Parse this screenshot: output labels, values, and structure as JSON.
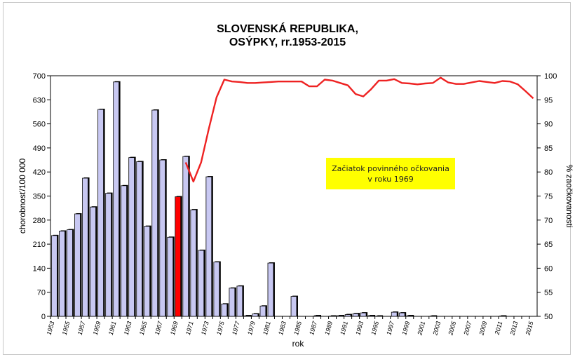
{
  "chart_data": {
    "type": "bar",
    "title_line1": "SLOVENSKÁ REPUBLIKA,",
    "title_line2": "OSÝPKY, rr.1953-2015",
    "xlabel": "rok",
    "ylabel": "chorobnosť/100 000",
    "y2label": "% zaočkovanosti",
    "annotation": "Začiatok povinného očkovania v roku 1969",
    "ylim": [
      0,
      700
    ],
    "y_ticks": [
      0,
      70,
      140,
      210,
      280,
      350,
      420,
      490,
      560,
      630,
      700
    ],
    "y2lim": [
      50,
      100
    ],
    "y2_ticks": [
      50,
      55,
      60,
      65,
      70,
      75,
      80,
      85,
      90,
      95,
      100
    ],
    "x_tick_labels": [
      "1953",
      "1955",
      "1957",
      "1959",
      "1961",
      "1963",
      "1965",
      "1967",
      "1969",
      "1971",
      "1973",
      "1975",
      "1977",
      "1979",
      "1981",
      "1983",
      "1985",
      "1987",
      "1989",
      "1991",
      "1993",
      "1995",
      "1997",
      "1999",
      "2001",
      "2003",
      "2005",
      "2007",
      "2009",
      "2011",
      "2013",
      "2015"
    ],
    "categories": [
      1953,
      1954,
      1955,
      1956,
      1957,
      1958,
      1959,
      1960,
      1961,
      1962,
      1963,
      1964,
      1965,
      1966,
      1967,
      1968,
      1969,
      1970,
      1971,
      1972,
      1973,
      1974,
      1975,
      1976,
      1977,
      1978,
      1979,
      1980,
      1981,
      1982,
      1983,
      1984,
      1985,
      1986,
      1987,
      1988,
      1989,
      1990,
      1991,
      1992,
      1993,
      1994,
      1995,
      1996,
      1997,
      1998,
      1999,
      2000,
      2001,
      2002,
      2003,
      2004,
      2005,
      2006,
      2007,
      2008,
      2009,
      2010,
      2011,
      2012,
      2013,
      2014,
      2015
    ],
    "series": [
      {
        "kind": "bar",
        "axis": "left",
        "color": "#c8c8f2",
        "highlight_category": 1969,
        "highlight_color": "#ff0000",
        "values": [
          235,
          248,
          252,
          298,
          402,
          318,
          602,
          358,
          682,
          380,
          462,
          450,
          262,
          600,
          455,
          230,
          348,
          465,
          310,
          192,
          406,
          158,
          36,
          82,
          88,
          2,
          7,
          30,
          155,
          0,
          0,
          58,
          0,
          0,
          2,
          0,
          1,
          2,
          5,
          8,
          10,
          2,
          1,
          0,
          12,
          10,
          2,
          0,
          0,
          1,
          0,
          0,
          0,
          0,
          0,
          0,
          0,
          0,
          1,
          0,
          0,
          0,
          0
        ]
      },
      {
        "kind": "line",
        "axis": "right",
        "color": "#ee2222",
        "x": [
          1970,
          1971,
          1972,
          1973,
          1974,
          1975,
          1976,
          1977,
          1978,
          1979,
          1980,
          1981,
          1982,
          1983,
          1984,
          1985,
          1986,
          1987,
          1988,
          1989,
          1990,
          1991,
          1992,
          1993,
          1994,
          1995,
          1996,
          1997,
          1998,
          1999,
          2000,
          2001,
          2002,
          2003,
          2004,
          2005,
          2006,
          2007,
          2008,
          2009,
          2010,
          2011,
          2012,
          2013,
          2014,
          2015
        ],
        "values": [
          82,
          78,
          82,
          89,
          95.5,
          99.2,
          98.8,
          98.7,
          98.5,
          98.5,
          98.6,
          98.7,
          98.8,
          98.8,
          98.8,
          98.8,
          97.8,
          97.8,
          99.2,
          99,
          98.5,
          98,
          96.2,
          95.7,
          97.2,
          99,
          99,
          99.3,
          98.5,
          98.4,
          98.2,
          98.4,
          98.5,
          99.6,
          98.6,
          98.3,
          98.3,
          98.6,
          98.9,
          98.7,
          98.5,
          98.9,
          98.8,
          98.2,
          96.8,
          95.3
        ]
      }
    ]
  }
}
